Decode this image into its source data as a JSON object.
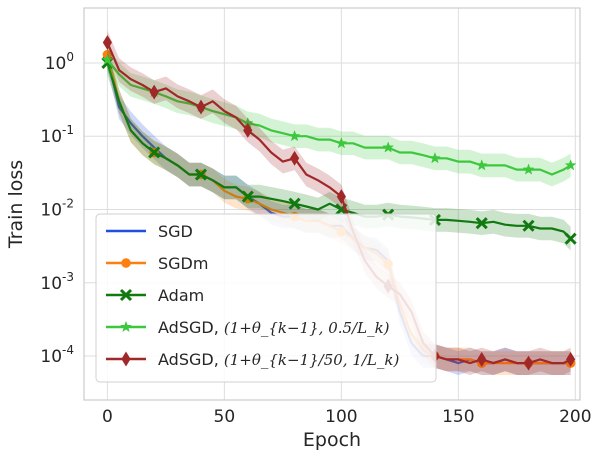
{
  "chart_data": {
    "type": "line",
    "xlabel": "Epoch",
    "ylabel": "Train loss",
    "xlim": [
      -10,
      202
    ],
    "ylim_log10": [
      -4.6,
      0.75
    ],
    "yscale": "log",
    "grid": true,
    "legend_position": "lower-left",
    "x_ticks": [
      {
        "value": 0,
        "label": "0"
      },
      {
        "value": 50,
        "label": "50"
      },
      {
        "value": 100,
        "label": "100"
      },
      {
        "value": 150,
        "label": "150"
      },
      {
        "value": 200,
        "label": "200"
      }
    ],
    "y_ticks": [
      {
        "exp": 0,
        "base": "10",
        "sup": "0"
      },
      {
        "exp": -1,
        "base": "10",
        "sup": "-1"
      },
      {
        "exp": -2,
        "base": "10",
        "sup": "-2"
      },
      {
        "exp": -3,
        "base": "10",
        "sup": "-3"
      },
      {
        "exp": -4,
        "base": "10",
        "sup": "-4"
      }
    ],
    "series": [
      {
        "name": "SGD",
        "color": "#1f4fe0",
        "marker": "none",
        "x": [
          0,
          5,
          10,
          15,
          20,
          25,
          30,
          35,
          40,
          45,
          50,
          55,
          60,
          65,
          70,
          75,
          80,
          85,
          90,
          95,
          100,
          105,
          110,
          115,
          120,
          125,
          130,
          135,
          140,
          145,
          150,
          155,
          160,
          165,
          170,
          175,
          180,
          185,
          190,
          195,
          198
        ],
        "y": [
          1.2,
          0.25,
          0.15,
          0.1,
          0.07,
          0.05,
          0.04,
          0.03,
          0.03,
          0.025,
          0.02,
          0.02,
          0.015,
          0.012,
          0.009,
          0.008,
          0.008,
          0.007,
          0.007,
          0.006,
          0.006,
          0.004,
          0.003,
          0.0028,
          0.002,
          0.0004,
          0.00015,
          0.0001,
          0.0001,
          9e-05,
          8e-05,
          9e-05,
          8e-05,
          8e-05,
          9e-05,
          8e-05,
          8e-05,
          8e-05,
          8e-05,
          8e-05,
          8e-05
        ]
      },
      {
        "name": "SGDm",
        "color": "#ff7f0e",
        "marker": "circle",
        "x": [
          0,
          5,
          10,
          15,
          20,
          25,
          30,
          35,
          40,
          45,
          50,
          55,
          60,
          65,
          70,
          75,
          80,
          85,
          90,
          95,
          100,
          105,
          110,
          115,
          120,
          125,
          130,
          135,
          140,
          145,
          150,
          155,
          160,
          165,
          170,
          175,
          180,
          185,
          190,
          195,
          198
        ],
        "y": [
          1.3,
          0.3,
          0.12,
          0.08,
          0.06,
          0.05,
          0.04,
          0.03,
          0.03,
          0.025,
          0.018,
          0.015,
          0.014,
          0.012,
          0.01,
          0.009,
          0.008,
          0.007,
          0.007,
          0.006,
          0.005,
          0.004,
          0.003,
          0.0025,
          0.0018,
          0.0005,
          0.0002,
          0.00012,
          0.0001,
          9e-05,
          9e-05,
          9e-05,
          8e-05,
          8e-05,
          8e-05,
          8e-05,
          8e-05,
          8e-05,
          8e-05,
          8e-05,
          8e-05
        ]
      },
      {
        "name": "Adam",
        "color": "#107a10",
        "marker": "x",
        "x": [
          0,
          5,
          10,
          15,
          20,
          25,
          30,
          35,
          40,
          45,
          50,
          55,
          60,
          65,
          70,
          75,
          80,
          85,
          90,
          95,
          100,
          105,
          110,
          115,
          120,
          125,
          130,
          135,
          140,
          145,
          150,
          155,
          160,
          165,
          170,
          175,
          180,
          185,
          190,
          195,
          198
        ],
        "y": [
          1.0,
          0.3,
          0.12,
          0.08,
          0.06,
          0.05,
          0.04,
          0.03,
          0.03,
          0.025,
          0.02,
          0.02,
          0.015,
          0.015,
          0.014,
          0.013,
          0.012,
          0.011,
          0.01,
          0.012,
          0.01,
          0.009,
          0.008,
          0.008,
          0.0085,
          0.008,
          0.0078,
          0.0075,
          0.0072,
          0.0072,
          0.007,
          0.0068,
          0.0065,
          0.0068,
          0.0062,
          0.006,
          0.006,
          0.0055,
          0.0055,
          0.005,
          0.004
        ]
      },
      {
        "name": "AdSGD, ",
        "name_math": "(1+θ_{k−1}, 0.5/L_k)",
        "color": "#3cc83c",
        "marker": "star",
        "x": [
          0,
          5,
          10,
          15,
          20,
          25,
          30,
          35,
          40,
          45,
          50,
          55,
          60,
          65,
          70,
          75,
          80,
          85,
          90,
          95,
          100,
          105,
          110,
          115,
          120,
          125,
          130,
          135,
          140,
          145,
          150,
          155,
          160,
          165,
          170,
          175,
          180,
          185,
          190,
          195,
          198
        ],
        "y": [
          1.1,
          0.7,
          0.5,
          0.45,
          0.4,
          0.35,
          0.3,
          0.28,
          0.25,
          0.22,
          0.2,
          0.18,
          0.15,
          0.14,
          0.12,
          0.11,
          0.1,
          0.1,
          0.09,
          0.09,
          0.08,
          0.08,
          0.07,
          0.07,
          0.07,
          0.06,
          0.06,
          0.055,
          0.05,
          0.05,
          0.045,
          0.045,
          0.04,
          0.04,
          0.04,
          0.035,
          0.035,
          0.035,
          0.03,
          0.035,
          0.04
        ]
      },
      {
        "name": "AdSGD, ",
        "name_math": "(1+θ_{k−1}/50, 1/L_k)",
        "color": "#a02828",
        "marker": "diamond",
        "x": [
          0,
          5,
          10,
          15,
          20,
          25,
          30,
          35,
          40,
          45,
          50,
          55,
          60,
          65,
          70,
          75,
          80,
          85,
          90,
          95,
          100,
          105,
          110,
          115,
          120,
          125,
          130,
          135,
          140,
          145,
          150,
          155,
          160,
          165,
          170,
          175,
          180,
          185,
          190,
          195,
          198
        ],
        "y": [
          1.9,
          0.8,
          0.6,
          0.5,
          0.4,
          0.45,
          0.35,
          0.3,
          0.25,
          0.3,
          0.22,
          0.18,
          0.12,
          0.09,
          0.06,
          0.045,
          0.05,
          0.03,
          0.025,
          0.02,
          0.015,
          0.005,
          0.002,
          0.0012,
          0.0009,
          0.0007,
          0.0004,
          0.00015,
          0.0001,
          9e-05,
          9e-05,
          8e-05,
          9e-05,
          8e-05,
          9e-05,
          8e-05,
          8e-05,
          9e-05,
          8e-05,
          8e-05,
          9e-05
        ]
      }
    ]
  }
}
